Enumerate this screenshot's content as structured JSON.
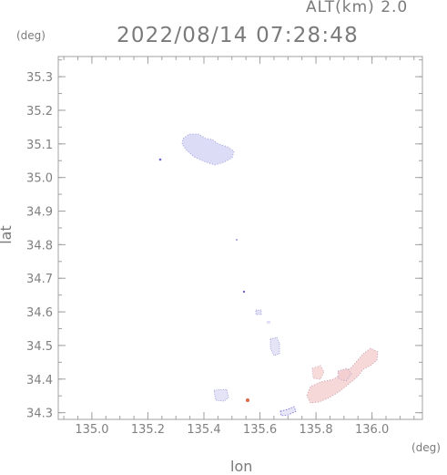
{
  "header": {
    "altitude": "ALT(km) 2.0",
    "datetime": "2022/08/14 07:28:48"
  },
  "axes": {
    "y_unit": "(deg)",
    "x_unit": "(deg)",
    "xlabel": "lon",
    "ylabel": "lat",
    "xlim": [
      134.88,
      136.18
    ],
    "ylim": [
      34.28,
      35.36
    ],
    "xticks": [
      "135.0",
      "135.2",
      "135.4",
      "135.6",
      "135.8",
      "136.0"
    ],
    "yticks": [
      "34.3",
      "34.4",
      "34.5",
      "34.6",
      "34.7",
      "34.8",
      "34.9",
      "35.0",
      "35.1",
      "35.2",
      "35.3"
    ]
  },
  "colors": {
    "axis": "#a0a0a0",
    "toward": "#dcdcf6",
    "away": "#f6d8d8"
  },
  "echo_regions": [
    {
      "name": "north-cluster",
      "lon": 135.42,
      "lat": 35.09,
      "kind": "toward"
    },
    {
      "name": "south-east-cluster",
      "lon": 135.9,
      "lat": 34.4,
      "kind": "away"
    }
  ]
}
